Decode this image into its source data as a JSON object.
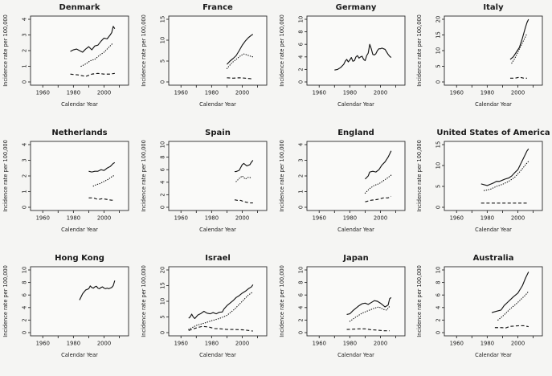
{
  "figure": {
    "y_axis_label": "Incidence rate per 100,000",
    "x_axis_label": "Calendar Year",
    "x_ticks": [
      1960,
      1970,
      1980,
      1990,
      2000,
      2010
    ],
    "x_tick_labels": [
      1960,
      1980,
      2000
    ],
    "xlim": [
      1952,
      2016
    ],
    "colors": {
      "page_bg": "#f5f5f3",
      "plot_bg": "#fafaf9",
      "line": "#141414",
      "frame": "#2a2a2a"
    },
    "layout": {
      "rows": 3,
      "cols": 4,
      "legend": "none",
      "grid": "off"
    }
  },
  "chart_data": [
    {
      "type": "line",
      "title": "Denmark",
      "ylim": [
        0,
        4
      ],
      "yticks": [
        0,
        1,
        2,
        3,
        4
      ],
      "series": [
        {
          "name": "solid",
          "style": "solid",
          "x": [
            1978,
            1980,
            1982,
            1984,
            1986,
            1988,
            1990,
            1992,
            1994,
            1996,
            1998,
            2000,
            2002,
            2004,
            2005,
            2006,
            2007
          ],
          "y": [
            1.95,
            2.05,
            2.1,
            2.0,
            1.9,
            2.1,
            2.25,
            2.05,
            2.3,
            2.35,
            2.6,
            2.8,
            2.75,
            3.0,
            3.15,
            3.55,
            3.4
          ]
        },
        {
          "name": "dotted",
          "style": "dotted",
          "x": [
            1985,
            1988,
            1991,
            1994,
            1997,
            2000,
            2003,
            2006
          ],
          "y": [
            1.0,
            1.15,
            1.35,
            1.45,
            1.7,
            1.9,
            2.2,
            2.5
          ]
        },
        {
          "name": "dashed",
          "style": "dashed",
          "x": [
            1978,
            1983,
            1988,
            1992,
            1996,
            2000,
            2004,
            2007
          ],
          "y": [
            0.5,
            0.45,
            0.35,
            0.5,
            0.55,
            0.5,
            0.5,
            0.55
          ]
        }
      ]
    },
    {
      "type": "line",
      "title": "France",
      "ylim": [
        0,
        15
      ],
      "yticks": [
        0,
        5,
        10,
        15
      ],
      "series": [
        {
          "name": "solid",
          "style": "solid",
          "x": [
            1990,
            1992,
            1994,
            1996,
            1998,
            2000,
            2002,
            2004,
            2006,
            2007
          ],
          "y": [
            4.2,
            5.0,
            5.6,
            6.3,
            7.5,
            8.8,
            9.8,
            10.6,
            11.2,
            11.4
          ]
        },
        {
          "name": "dotted",
          "style": "dotted",
          "x": [
            1990,
            1993,
            1996,
            1999,
            2001,
            2003,
            2005,
            2007
          ],
          "y": [
            3.2,
            4.5,
            5.4,
            6.3,
            6.7,
            6.5,
            6.2,
            6.0
          ]
        },
        {
          "name": "dashed",
          "style": "dashed",
          "x": [
            1990,
            1994,
            1998,
            2002,
            2005,
            2007
          ],
          "y": [
            1.0,
            0.9,
            1.0,
            0.9,
            0.8,
            0.7
          ]
        }
      ]
    },
    {
      "type": "line",
      "title": "Germany",
      "ylim": [
        0,
        10
      ],
      "yticks": [
        0,
        2,
        4,
        6,
        8,
        10
      ],
      "series": [
        {
          "name": "solid",
          "style": "solid",
          "x": [
            1970,
            1972,
            1974,
            1976,
            1977,
            1978,
            1979,
            1980,
            1981,
            1982,
            1983,
            1984,
            1985,
            1986,
            1987,
            1988,
            1989,
            1990,
            1991,
            1992,
            1993,
            1994,
            1995,
            1996,
            1997,
            1998,
            1999,
            2000,
            2001,
            2002,
            2003,
            2004,
            2005,
            2006,
            2007
          ],
          "y": [
            1.9,
            2.0,
            2.3,
            2.8,
            3.3,
            3.6,
            3.2,
            3.5,
            3.9,
            3.3,
            3.4,
            4.0,
            4.2,
            3.8,
            4.0,
            4.1,
            3.6,
            3.4,
            4.2,
            4.6,
            6.0,
            5.3,
            4.4,
            4.3,
            4.5,
            5.0,
            5.3,
            5.3,
            5.4,
            5.3,
            5.2,
            4.8,
            4.4,
            4.1,
            3.9
          ]
        }
      ]
    },
    {
      "type": "line",
      "title": "Italy",
      "ylim": [
        0,
        20
      ],
      "yticks": [
        0,
        5,
        10,
        15,
        20
      ],
      "series": [
        {
          "name": "solid",
          "style": "solid",
          "x": [
            1995,
            1997,
            1999,
            2001,
            2003,
            2005,
            2006,
            2007
          ],
          "y": [
            7.2,
            8.0,
            9.5,
            11.0,
            14.0,
            17.5,
            19.0,
            20.0
          ]
        },
        {
          "name": "dotted",
          "style": "dotted",
          "x": [
            1996,
            1998,
            2000,
            2002,
            2004,
            2006
          ],
          "y": [
            6.0,
            7.5,
            9.5,
            11.5,
            13.5,
            15.5
          ]
        },
        {
          "name": "dashed",
          "style": "dashed",
          "x": [
            1995,
            1998,
            2001,
            2004,
            2006
          ],
          "y": [
            1.2,
            1.2,
            1.5,
            1.2,
            1.2
          ]
        }
      ]
    },
    {
      "type": "line",
      "title": "Netherlands",
      "ylim": [
        0,
        4
      ],
      "yticks": [
        0,
        1,
        2,
        3,
        4
      ],
      "series": [
        {
          "name": "solid",
          "style": "solid",
          "x": [
            1990,
            1992,
            1994,
            1996,
            1998,
            2000,
            2002,
            2004,
            2006,
            2007
          ],
          "y": [
            2.3,
            2.25,
            2.3,
            2.3,
            2.4,
            2.35,
            2.5,
            2.6,
            2.8,
            2.85
          ]
        },
        {
          "name": "dotted",
          "style": "dotted",
          "x": [
            1993,
            1995,
            1997,
            1999,
            2001,
            2003,
            2005,
            2007
          ],
          "y": [
            1.35,
            1.45,
            1.5,
            1.6,
            1.7,
            1.8,
            1.95,
            2.05
          ]
        },
        {
          "name": "dashed",
          "style": "dashed",
          "x": [
            1990,
            1993,
            1996,
            1999,
            2002,
            2005,
            2007
          ],
          "y": [
            0.6,
            0.6,
            0.5,
            0.55,
            0.5,
            0.45,
            0.45
          ]
        }
      ]
    },
    {
      "type": "line",
      "title": "Spain",
      "ylim": [
        0,
        10
      ],
      "yticks": [
        0,
        2,
        4,
        6,
        8,
        10
      ],
      "series": [
        {
          "name": "solid",
          "style": "solid",
          "x": [
            1995,
            1996,
            1998,
            2000,
            2001,
            2003,
            2005,
            2006,
            2007
          ],
          "y": [
            5.7,
            5.7,
            5.9,
            6.8,
            7.0,
            6.6,
            6.8,
            7.2,
            7.5
          ]
        },
        {
          "name": "dotted",
          "style": "dotted",
          "x": [
            1996,
            1998,
            2000,
            2002,
            2004,
            2006
          ],
          "y": [
            4.1,
            4.6,
            5.0,
            4.5,
            4.8,
            4.7
          ]
        },
        {
          "name": "dashed",
          "style": "dashed",
          "x": [
            1995,
            1997,
            1999,
            2001,
            2003,
            2005,
            2007
          ],
          "y": [
            1.2,
            1.1,
            1.1,
            0.9,
            0.8,
            0.7,
            0.7
          ]
        }
      ]
    },
    {
      "type": "line",
      "title": "England",
      "ylim": [
        0,
        4
      ],
      "yticks": [
        0,
        1,
        2,
        3,
        4
      ],
      "series": [
        {
          "name": "solid",
          "style": "solid",
          "x": [
            1990,
            1992,
            1993,
            1995,
            1997,
            1999,
            2001,
            2003,
            2005,
            2007
          ],
          "y": [
            1.8,
            2.0,
            2.25,
            2.3,
            2.25,
            2.4,
            2.7,
            2.9,
            3.2,
            3.6
          ]
        },
        {
          "name": "dotted",
          "style": "dotted",
          "x": [
            1990,
            1993,
            1996,
            1999,
            2002,
            2005,
            2007
          ],
          "y": [
            0.9,
            1.2,
            1.4,
            1.5,
            1.7,
            1.9,
            2.05
          ]
        },
        {
          "name": "dashed",
          "style": "dashed",
          "x": [
            1990,
            1994,
            1998,
            2002,
            2005,
            2007
          ],
          "y": [
            0.35,
            0.45,
            0.5,
            0.6,
            0.6,
            0.7
          ]
        }
      ]
    },
    {
      "type": "line",
      "title": "United States of America",
      "ylim": [
        0,
        15
      ],
      "yticks": [
        0,
        5,
        10,
        15
      ],
      "series": [
        {
          "name": "solid",
          "style": "solid",
          "x": [
            1976,
            1978,
            1980,
            1982,
            1984,
            1986,
            1988,
            1990,
            1992,
            1994,
            1996,
            1998,
            2000,
            2002,
            2004,
            2006,
            2007
          ],
          "y": [
            5.6,
            5.4,
            5.2,
            5.5,
            5.8,
            6.2,
            6.2,
            6.5,
            6.8,
            7.0,
            7.5,
            8.3,
            9.0,
            10.5,
            12.0,
            13.5,
            14.0
          ]
        },
        {
          "name": "dotted",
          "style": "dotted",
          "x": [
            1978,
            1982,
            1986,
            1990,
            1994,
            1998,
            2002,
            2005,
            2007
          ],
          "y": [
            4.0,
            4.3,
            5.0,
            5.5,
            6.2,
            7.2,
            8.8,
            10.2,
            11.0
          ]
        },
        {
          "name": "dashed",
          "style": "dashed",
          "x": [
            1976,
            1982,
            1988,
            1994,
            2000,
            2007
          ],
          "y": [
            1.0,
            1.0,
            1.0,
            1.0,
            1.0,
            1.0
          ]
        }
      ]
    },
    {
      "type": "line",
      "title": "Hong Kong",
      "ylim": [
        0,
        10
      ],
      "yticks": [
        0,
        2,
        4,
        6,
        8,
        10
      ],
      "series": [
        {
          "name": "solid",
          "style": "solid",
          "x": [
            1984,
            1985,
            1986,
            1987,
            1988,
            1989,
            1990,
            1991,
            1992,
            1993,
            1994,
            1995,
            1996,
            1997,
            1998,
            1999,
            2000,
            2001,
            2002,
            2003,
            2004,
            2005,
            2006,
            2007
          ],
          "y": [
            5.2,
            5.7,
            6.2,
            6.5,
            6.8,
            6.9,
            7.0,
            7.45,
            7.2,
            7.1,
            7.3,
            7.4,
            7.1,
            7.0,
            7.2,
            7.3,
            7.1,
            7.0,
            7.1,
            7.0,
            7.1,
            7.2,
            7.5,
            8.3
          ]
        }
      ]
    },
    {
      "type": "line",
      "title": "Israel",
      "ylim": [
        0,
        20
      ],
      "yticks": [
        0,
        5,
        10,
        15,
        20
      ],
      "series": [
        {
          "name": "solid",
          "style": "solid",
          "x": [
            1965,
            1966,
            1967,
            1968,
            1969,
            1971,
            1973,
            1975,
            1977,
            1979,
            1981,
            1983,
            1985,
            1987,
            1988,
            1990,
            1992,
            1994,
            1996,
            1998,
            2000,
            2002,
            2004,
            2006,
            2007
          ],
          "y": [
            4.6,
            5.0,
            5.9,
            5.0,
            4.5,
            5.6,
            6.1,
            6.8,
            6.2,
            6.0,
            6.4,
            6.0,
            6.5,
            6.6,
            7.5,
            8.6,
            9.4,
            10.2,
            11.2,
            11.8,
            12.6,
            13.2,
            14.0,
            14.6,
            15.3
          ]
        },
        {
          "name": "dotted",
          "style": "dotted",
          "x": [
            1965,
            1970,
            1975,
            1980,
            1985,
            1990,
            1995,
            2000,
            2004,
            2007
          ],
          "y": [
            1.0,
            2.3,
            3.0,
            3.8,
            4.5,
            5.5,
            7.5,
            10.0,
            12.0,
            13.0
          ]
        },
        {
          "name": "dashed",
          "style": "dashed",
          "x": [
            1965,
            1970,
            1974,
            1978,
            1982,
            1986,
            1990,
            1995,
            2000,
            2004,
            2007
          ],
          "y": [
            0.7,
            1.5,
            2.0,
            1.8,
            1.3,
            1.2,
            1.0,
            1.0,
            0.9,
            0.7,
            0.5
          ]
        }
      ]
    },
    {
      "type": "line",
      "title": "Japan",
      "ylim": [
        0,
        10
      ],
      "yticks": [
        0,
        2,
        4,
        6,
        8,
        10
      ],
      "series": [
        {
          "name": "solid",
          "style": "solid",
          "x": [
            1978,
            1980,
            1982,
            1984,
            1986,
            1988,
            1990,
            1992,
            1994,
            1996,
            1998,
            2000,
            2002,
            2003,
            2005,
            2006,
            2007
          ],
          "y": [
            2.9,
            3.0,
            3.5,
            3.9,
            4.3,
            4.6,
            4.7,
            4.5,
            4.8,
            5.1,
            5.0,
            4.7,
            4.3,
            4.1,
            4.4,
            5.4,
            5.6
          ]
        },
        {
          "name": "dotted",
          "style": "dotted",
          "x": [
            1980,
            1984,
            1988,
            1992,
            1996,
            1999,
            2002,
            2004,
            2006
          ],
          "y": [
            1.8,
            2.5,
            3.1,
            3.5,
            3.9,
            4.1,
            3.7,
            3.6,
            4.2
          ]
        },
        {
          "name": "dashed",
          "style": "dashed",
          "x": [
            1978,
            1982,
            1986,
            1990,
            1994,
            1998,
            2002,
            2006
          ],
          "y": [
            0.5,
            0.55,
            0.6,
            0.6,
            0.45,
            0.4,
            0.3,
            0.3
          ]
        }
      ]
    },
    {
      "type": "line",
      "title": "Australia",
      "ylim": [
        0,
        10
      ],
      "yticks": [
        0,
        2,
        4,
        6,
        8,
        10
      ],
      "series": [
        {
          "name": "solid",
          "style": "solid",
          "x": [
            1983,
            1986,
            1989,
            1991,
            1994,
            1997,
            2000,
            2003,
            2005,
            2007
          ],
          "y": [
            3.2,
            3.4,
            3.6,
            4.3,
            5.0,
            5.7,
            6.3,
            7.5,
            8.7,
            9.7
          ]
        },
        {
          "name": "dotted",
          "style": "dotted",
          "x": [
            1987,
            1990,
            1993,
            1996,
            1999,
            2002,
            2005,
            2007
          ],
          "y": [
            2.0,
            2.6,
            3.3,
            4.0,
            4.6,
            5.3,
            6.0,
            6.6
          ]
        },
        {
          "name": "dashed",
          "style": "dashed",
          "x": [
            1985,
            1989,
            1992,
            1995,
            1998,
            2001,
            2004,
            2007
          ],
          "y": [
            0.8,
            0.8,
            0.75,
            1.0,
            1.05,
            1.1,
            1.1,
            0.95
          ]
        }
      ]
    }
  ]
}
